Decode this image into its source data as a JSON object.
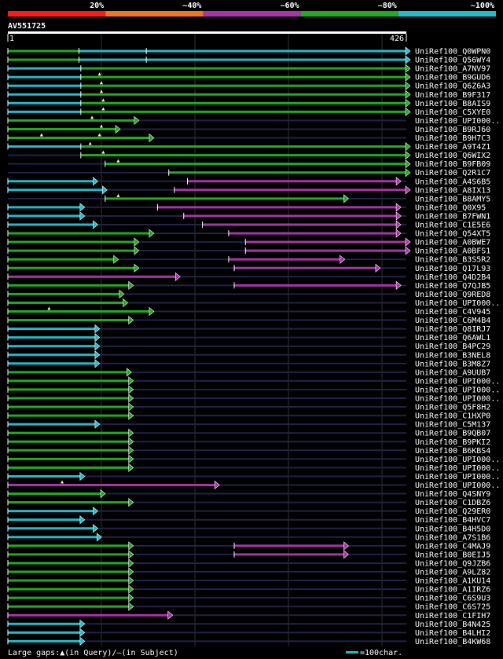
{
  "query": {
    "id": "AV551725",
    "start": "1",
    "end": "426",
    "length": 426
  },
  "legend": {
    "labels": [
      "20%",
      "~40%",
      "~60%",
      "~80%",
      "~100%"
    ],
    "colors": [
      "#ff1a1a",
      "#ee7722",
      "#aa33aa",
      "#22aa22",
      "#22bbcc"
    ]
  },
  "footer": {
    "gaps_text": "Large gaps:▲(in Query)/–(in Subject)",
    "scale_text": "=100char."
  },
  "chart_data": {
    "type": "alignment-overview",
    "title": "AV551725",
    "xlim": [
      1,
      426
    ],
    "grid_positions": [
      100,
      200,
      300,
      400
    ],
    "color_scale": {
      "cyan": "~100%",
      "green": "~80%",
      "purple": "~60%",
      "orange": "~40%",
      "red": "20%"
    },
    "hits": [
      {
        "name": "UniRef100_Q0WPN0",
        "segs": [
          [
            0,
            76,
            "g"
          ],
          [
            76,
            148,
            "c"
          ],
          [
            148,
            426,
            "c"
          ]
        ]
      },
      {
        "name": "UniRef100_Q56WY4",
        "segs": [
          [
            0,
            76,
            "g"
          ],
          [
            76,
            148,
            "c"
          ],
          [
            148,
            426,
            "c"
          ]
        ]
      },
      {
        "name": "UniRef100_A7NV97",
        "segs": [
          [
            0,
            78,
            "c"
          ],
          [
            78,
            426,
            "g"
          ]
        ]
      },
      {
        "name": "UniRef100_B9GUD6",
        "segs": [
          [
            0,
            78,
            "c"
          ],
          [
            78,
            426,
            "g"
          ]
        ],
        "gaps": [
          98
        ]
      },
      {
        "name": "UniRef100_Q6Z6A3",
        "segs": [
          [
            0,
            78,
            "c"
          ],
          [
            78,
            426,
            "g"
          ]
        ],
        "gaps": [
          100
        ]
      },
      {
        "name": "UniRef100_B9F317",
        "segs": [
          [
            0,
            78,
            "c"
          ],
          [
            78,
            426,
            "g"
          ]
        ],
        "gaps": [
          100
        ]
      },
      {
        "name": "UniRef100_B8AIS9",
        "segs": [
          [
            0,
            78,
            "c"
          ],
          [
            78,
            426,
            "g"
          ]
        ],
        "gaps": [
          102
        ]
      },
      {
        "name": "UniRef100_C5XYE0",
        "segs": [
          [
            0,
            78,
            "c"
          ],
          [
            78,
            426,
            "g"
          ]
        ],
        "gaps": [
          102
        ]
      },
      {
        "name": "UniRef100_UPI000..",
        "segs": [
          [
            0,
            136,
            "g"
          ]
        ],
        "gaps": [
          90
        ]
      },
      {
        "name": "UniRef100_B9RJ60",
        "segs": [
          [
            0,
            116,
            "g"
          ]
        ],
        "gaps": [
          100
        ]
      },
      {
        "name": "UniRef100_B9H7C3",
        "segs": [
          [
            0,
            152,
            "g"
          ]
        ],
        "gaps": [
          36,
          98
        ]
      },
      {
        "name": "UniRef100_A9T4Z1",
        "segs": [
          [
            0,
            78,
            "c"
          ],
          [
            78,
            426,
            "g"
          ]
        ],
        "gaps": [
          88
        ]
      },
      {
        "name": "UniRef100_Q6WIX2",
        "segs": [
          [
            78,
            426,
            "g"
          ]
        ],
        "gaps": [
          102
        ]
      },
      {
        "name": "UniRef100_B9FB09",
        "segs": [
          [
            104,
            426,
            "g"
          ]
        ],
        "gaps": [
          118
        ]
      },
      {
        "name": "UniRef100_Q2R1C7",
        "segs": [
          [
            172,
            426,
            "g"
          ]
        ]
      },
      {
        "name": "UniRef100_A4S6B5",
        "segs": [
          [
            0,
            92,
            "c"
          ],
          [
            192,
            416,
            "p"
          ]
        ]
      },
      {
        "name": "UniRef100_A8IX13",
        "segs": [
          [
            0,
            102,
            "c"
          ],
          [
            178,
            426,
            "p"
          ]
        ]
      },
      {
        "name": "UniRef100_B8AMY5",
        "segs": [
          [
            104,
            360,
            "g"
          ]
        ],
        "gaps": [
          118
        ]
      },
      {
        "name": "UniRef100_Q0X95",
        "segs": [
          [
            0,
            78,
            "c"
          ],
          [
            160,
            416,
            "p"
          ]
        ]
      },
      {
        "name": "UniRef100_B7FWN1",
        "segs": [
          [
            0,
            78,
            "c"
          ],
          [
            188,
            416,
            "p"
          ]
        ]
      },
      {
        "name": "UniRef100_C1E5E6",
        "segs": [
          [
            0,
            92,
            "c"
          ],
          [
            208,
            416,
            "p"
          ]
        ]
      },
      {
        "name": "UniRef100_Q54XT5",
        "segs": [
          [
            0,
            152,
            "g"
          ],
          [
            236,
            416,
            "p"
          ]
        ]
      },
      {
        "name": "UniRef100_A0BWE7",
        "segs": [
          [
            0,
            136,
            "g"
          ],
          [
            254,
            426,
            "p"
          ]
        ]
      },
      {
        "name": "UniRef100_A0BFS1",
        "segs": [
          [
            0,
            136,
            "g"
          ],
          [
            254,
            426,
            "p"
          ]
        ]
      },
      {
        "name": "UniRef100_B3S5R2",
        "segs": [
          [
            0,
            114,
            "g"
          ],
          [
            236,
            356,
            "p"
          ]
        ]
      },
      {
        "name": "UniRef100_Q17L93",
        "segs": [
          [
            0,
            136,
            "g"
          ],
          [
            242,
            394,
            "p"
          ]
        ]
      },
      {
        "name": "UniRef100_Q4D2B4",
        "segs": [
          [
            0,
            180,
            "p"
          ]
        ]
      },
      {
        "name": "UniRef100_Q7QJB5",
        "segs": [
          [
            0,
            130,
            "g"
          ],
          [
            242,
            416,
            "p"
          ]
        ]
      },
      {
        "name": "UniRef100_Q9RED8",
        "segs": [
          [
            0,
            120,
            "g"
          ]
        ]
      },
      {
        "name": "UniRef100_UPI000..",
        "segs": [
          [
            0,
            124,
            "g"
          ]
        ]
      },
      {
        "name": "UniRef100_C4V945",
        "segs": [
          [
            0,
            152,
            "g"
          ]
        ],
        "gaps": [
          44
        ]
      },
      {
        "name": "UniRef100_C6M4B4",
        "segs": [
          [
            0,
            130,
            "g"
          ]
        ]
      },
      {
        "name": "UniRef100_Q8IRJ7",
        "segs": [
          [
            0,
            94,
            "c"
          ]
        ]
      },
      {
        "name": "UniRef100_Q6AWL1",
        "segs": [
          [
            0,
            94,
            "c"
          ]
        ]
      },
      {
        "name": "UniRef100_B4PC29",
        "segs": [
          [
            0,
            94,
            "c"
          ]
        ]
      },
      {
        "name": "UniRef100_B3NEL8",
        "segs": [
          [
            0,
            94,
            "c"
          ]
        ]
      },
      {
        "name": "UniRef100_B3M8Z7",
        "segs": [
          [
            0,
            94,
            "c"
          ]
        ]
      },
      {
        "name": "UniRef100_A9UUB7",
        "segs": [
          [
            0,
            128,
            "g"
          ]
        ]
      },
      {
        "name": "UniRef100_UPI000..",
        "segs": [
          [
            0,
            130,
            "g"
          ]
        ]
      },
      {
        "name": "UniRef100_UPI000..",
        "segs": [
          [
            0,
            130,
            "g"
          ]
        ]
      },
      {
        "name": "UniRef100_UPI000..",
        "segs": [
          [
            0,
            130,
            "g"
          ]
        ]
      },
      {
        "name": "UniRef100_Q5F8H2",
        "segs": [
          [
            0,
            130,
            "g"
          ]
        ]
      },
      {
        "name": "UniRef100_C1HXP0",
        "segs": [
          [
            0,
            130,
            "g"
          ]
        ]
      },
      {
        "name": "UniRef100_C5M137",
        "segs": [
          [
            0,
            94,
            "c"
          ]
        ]
      },
      {
        "name": "UniRef100_B9QB07",
        "segs": [
          [
            0,
            130,
            "g"
          ]
        ]
      },
      {
        "name": "UniRef100_B9PKI2",
        "segs": [
          [
            0,
            130,
            "g"
          ]
        ]
      },
      {
        "name": "UniRef100_B6KBS4",
        "segs": [
          [
            0,
            130,
            "g"
          ]
        ]
      },
      {
        "name": "UniRef100_UPI000..",
        "segs": [
          [
            0,
            130,
            "g"
          ]
        ]
      },
      {
        "name": "UniRef100_UPI000..",
        "segs": [
          [
            0,
            130,
            "g"
          ]
        ]
      },
      {
        "name": "UniRef100_UPI000..",
        "segs": [
          [
            0,
            78,
            "c"
          ]
        ]
      },
      {
        "name": "UniRef100_UPI000..",
        "segs": [
          [
            0,
            222,
            "p"
          ]
        ],
        "gaps": [
          58
        ]
      },
      {
        "name": "UniRef100_Q4SNY9",
        "segs": [
          [
            0,
            100,
            "g"
          ]
        ]
      },
      {
        "name": "UniRef100_C1DBZ6",
        "segs": [
          [
            0,
            130,
            "g"
          ]
        ]
      },
      {
        "name": "UniRef100_Q29ER0",
        "segs": [
          [
            0,
            92,
            "c"
          ]
        ]
      },
      {
        "name": "UniRef100_B4HVC7",
        "segs": [
          [
            0,
            78,
            "c"
          ]
        ]
      },
      {
        "name": "UniRef100_B4H5D0",
        "segs": [
          [
            0,
            92,
            "c"
          ]
        ]
      },
      {
        "name": "UniRef100_A7S1B6",
        "segs": [
          [
            0,
            96,
            "c"
          ]
        ]
      },
      {
        "name": "UniRef100_C4MAJ9",
        "segs": [
          [
            0,
            130,
            "g"
          ],
          [
            242,
            360,
            "p"
          ]
        ]
      },
      {
        "name": "UniRef100_B0EIJ5",
        "segs": [
          [
            0,
            130,
            "g"
          ],
          [
            242,
            360,
            "p"
          ]
        ]
      },
      {
        "name": "UniRef100_Q9JZB6",
        "segs": [
          [
            0,
            130,
            "g"
          ]
        ]
      },
      {
        "name": "UniRef100_A9LZ82",
        "segs": [
          [
            0,
            130,
            "g"
          ]
        ]
      },
      {
        "name": "UniRef100_A1KU14",
        "segs": [
          [
            0,
            130,
            "g"
          ]
        ]
      },
      {
        "name": "UniRef100_A1IRZ6",
        "segs": [
          [
            0,
            130,
            "g"
          ]
        ]
      },
      {
        "name": "UniRef100_C6S9U3",
        "segs": [
          [
            0,
            130,
            "g"
          ]
        ]
      },
      {
        "name": "UniRef100_C6S725",
        "segs": [
          [
            0,
            130,
            "g"
          ]
        ]
      },
      {
        "name": "UniRef100_C1FIH7",
        "segs": [
          [
            0,
            172,
            "p"
          ]
        ]
      },
      {
        "name": "UniRef100_B4N425",
        "segs": [
          [
            0,
            78,
            "c"
          ]
        ]
      },
      {
        "name": "UniRef100_B4LHI2",
        "segs": [
          [
            0,
            78,
            "c"
          ]
        ]
      },
      {
        "name": "UniRef100_B4KW68",
        "segs": [
          [
            0,
            78,
            "c"
          ]
        ]
      }
    ]
  }
}
